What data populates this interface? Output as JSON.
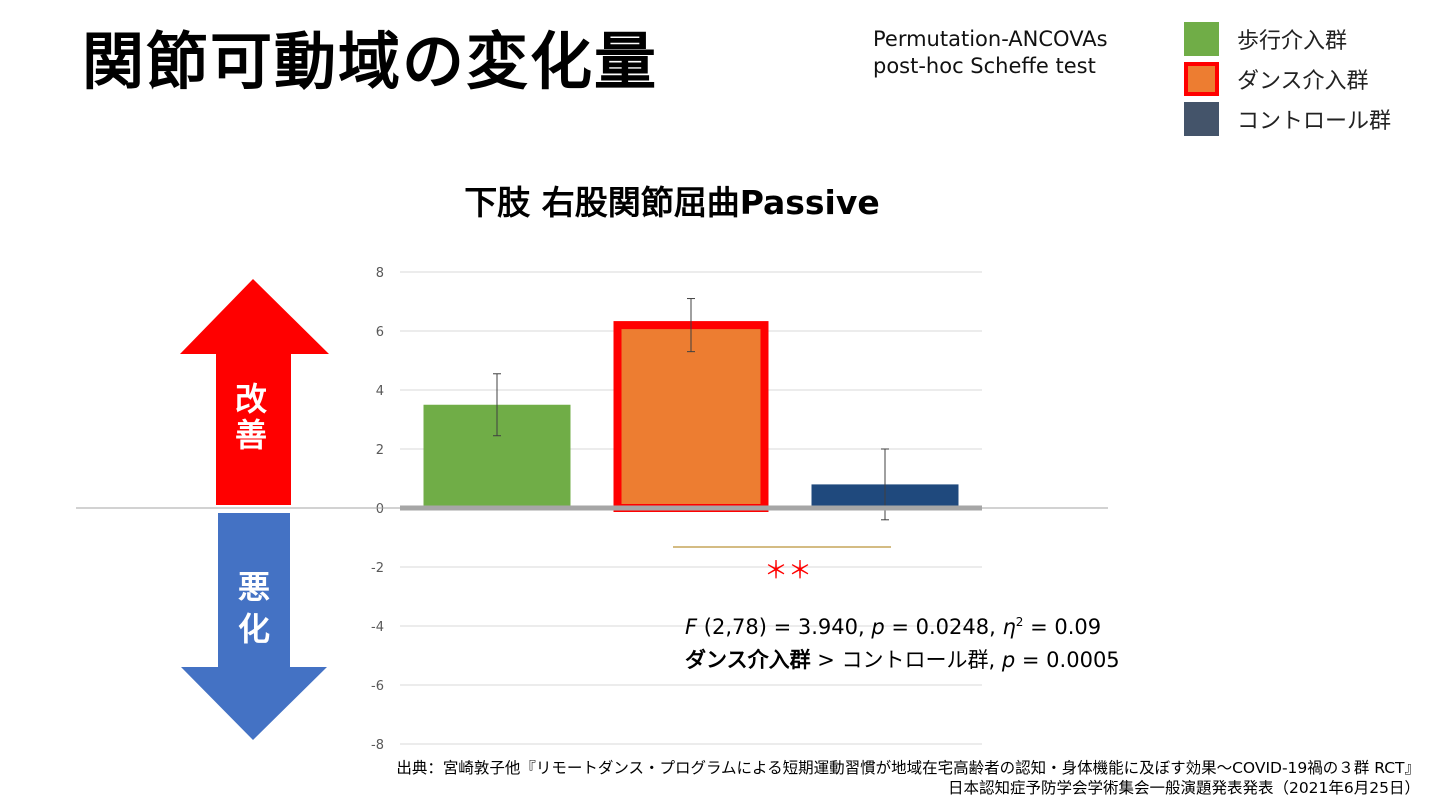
{
  "page": {
    "title": "関節可動域の変化量",
    "method_lines": [
      "Permutation-ANCOVAs",
      "post-hoc Scheffe test"
    ]
  },
  "legend": [
    {
      "label": "歩行介入群",
      "color": "#70ad47",
      "border": "#70ad47"
    },
    {
      "label": "ダンス介入群",
      "color": "#ed7d31",
      "border": "#ff0000"
    },
    {
      "label": "コントロール群",
      "color": "#44546a",
      "border": "#44546a"
    }
  ],
  "arrows": {
    "up_label": "改善",
    "up_color": "#ff0000",
    "down_label": "悪化",
    "down_color": "#4472c4"
  },
  "chart_data": {
    "type": "bar",
    "title": "下肢 右股関節屈曲Passive",
    "categories": [
      "歩行介入群",
      "ダンス介入群",
      "コントロール群"
    ],
    "values": [
      3.5,
      6.2,
      0.8
    ],
    "error": [
      1.05,
      0.9,
      1.2
    ],
    "colors": [
      "#70ad47",
      "#ed7d31",
      "#1f497d"
    ],
    "highlight_index": 1,
    "highlight_border": "#ff0000",
    "ylim": [
      -8,
      8
    ],
    "yticks": [
      8,
      6,
      4,
      2,
      0,
      -2,
      -4,
      -6,
      -8
    ],
    "grid": true,
    "significance": {
      "from": 1,
      "to": 2,
      "label": "＊＊",
      "line_color": "#c5a55a",
      "label_color": "#ff0000"
    }
  },
  "stats": {
    "line1": {
      "f": "F",
      "f_rest": " (2,78) = 3.940, ",
      "p": "p",
      "p_rest": " = 0.0248, ",
      "eta": "η",
      "eta_sup": "2",
      "eta_rest": " = 0.09"
    },
    "line2": {
      "group": "ダンス介入群",
      "rest": " > コントロール群, ",
      "p": "p",
      "p_rest": " = 0.0005"
    }
  },
  "source": {
    "line1": "出典：宮崎敦子他『リモートダンス・プログラムによる短期運動習慣が地域在宅高齢者の認知・身体機能に及ぼす効果～COVID-19禍の３群 RCT』",
    "line2": "日本認知症予防学会学術集会一般演題発表発表（2021年6月25日）"
  }
}
